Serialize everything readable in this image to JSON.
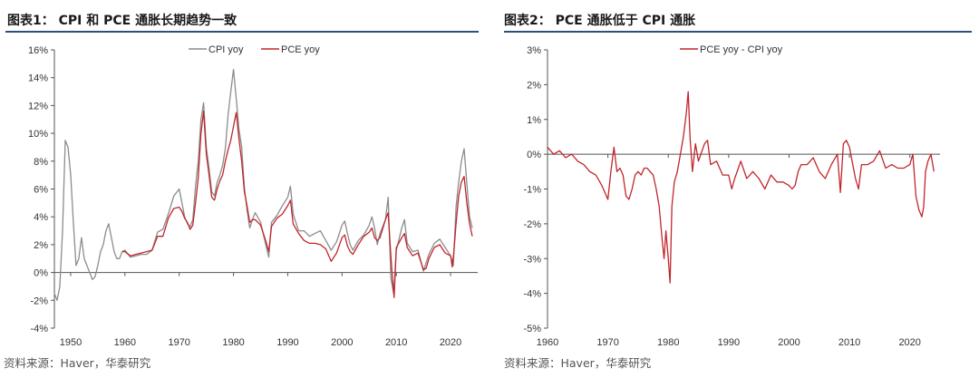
{
  "source_text": "资料来源：Haver，华泰研究",
  "chart_data": [
    {
      "type": "line",
      "title": "图表1： CPI 和 PCE 通胀长期趋势一致",
      "ylim": [
        -4,
        16
      ],
      "yticks": [
        -4,
        -2,
        0,
        2,
        4,
        6,
        8,
        10,
        12,
        14,
        16
      ],
      "ytick_labels": [
        "-4%",
        "-2%",
        "0%",
        "2%",
        "4%",
        "6%",
        "8%",
        "10%",
        "12%",
        "14%",
        "16%"
      ],
      "xlim": [
        1947,
        2025
      ],
      "xticks": [
        1950,
        1960,
        1970,
        1980,
        1990,
        2000,
        2010,
        2020
      ],
      "xtick_labels": [
        "1950",
        "1960",
        "1970",
        "1980",
        "1990",
        "2000",
        "2010",
        "2020"
      ],
      "legend_position": "top-center",
      "series": [
        {
          "name": "CPI  yoy",
          "color": "#8c8c8c",
          "x": [
            1947.0,
            1947.5,
            1948.0,
            1948.5,
            1949.0,
            1949.5,
            1950.0,
            1950.5,
            1951.0,
            1951.5,
            1952.0,
            1952.5,
            1953.0,
            1953.5,
            1954.0,
            1954.5,
            1955.0,
            1955.5,
            1956.0,
            1956.5,
            1957.0,
            1957.5,
            1958.0,
            1958.5,
            1959.0,
            1959.5,
            1960.0,
            1961.0,
            1962.0,
            1963.0,
            1964.0,
            1965.0,
            1966.0,
            1967.0,
            1968.0,
            1969.0,
            1970.0,
            1970.5,
            1971.0,
            1971.5,
            1972.0,
            1972.5,
            1973.0,
            1973.5,
            1974.0,
            1974.5,
            1975.0,
            1975.5,
            1976.0,
            1976.5,
            1977.0,
            1977.5,
            1978.0,
            1978.5,
            1979.0,
            1979.5,
            1980.0,
            1980.5,
            1981.0,
            1981.5,
            1982.0,
            1982.5,
            1983.0,
            1983.5,
            1984.0,
            1985.0,
            1986.0,
            1986.5,
            1987.0,
            1988.0,
            1989.0,
            1990.0,
            1990.5,
            1991.0,
            1992.0,
            1993.0,
            1994.0,
            1995.0,
            1996.0,
            1997.0,
            1998.0,
            1999.0,
            2000.0,
            2000.5,
            2001.0,
            2001.5,
            2002.0,
            2003.0,
            2004.0,
            2005.0,
            2005.5,
            2006.0,
            2006.5,
            2007.0,
            2008.0,
            2008.5,
            2009.0,
            2009.5,
            2010.0,
            2011.0,
            2011.5,
            2012.0,
            2013.0,
            2014.0,
            2015.0,
            2016.0,
            2017.0,
            2018.0,
            2019.0,
            2020.0,
            2020.5,
            2021.0,
            2021.5,
            2022.0,
            2022.5,
            2023.0,
            2023.5,
            2024.0
          ],
          "values": [
            -1.5,
            -2.0,
            -1.0,
            3.0,
            9.5,
            9.0,
            7.0,
            3.5,
            0.5,
            1.0,
            2.5,
            1.0,
            0.5,
            0.0,
            -0.5,
            -0.3,
            0.5,
            1.5,
            2.0,
            3.0,
            3.5,
            2.5,
            1.5,
            1.0,
            1.0,
            1.5,
            1.6,
            1.1,
            1.2,
            1.3,
            1.3,
            1.6,
            2.9,
            3.1,
            4.2,
            5.5,
            6.0,
            5.0,
            4.0,
            3.5,
            3.3,
            3.8,
            6.2,
            8.0,
            11.0,
            12.2,
            9.0,
            7.5,
            5.8,
            5.5,
            6.5,
            7.0,
            7.7,
            8.9,
            11.3,
            13.0,
            14.6,
            12.5,
            10.3,
            9.0,
            6.1,
            4.5,
            3.2,
            3.8,
            4.3,
            3.6,
            1.9,
            1.1,
            3.6,
            4.1,
            4.8,
            5.4,
            6.2,
            4.2,
            3.0,
            3.0,
            2.6,
            2.8,
            3.0,
            2.3,
            1.6,
            2.2,
            3.4,
            3.7,
            2.8,
            2.0,
            1.6,
            2.3,
            2.7,
            3.4,
            4.0,
            3.2,
            2.0,
            2.8,
            3.8,
            5.4,
            -0.4,
            -1.5,
            1.6,
            3.2,
            3.8,
            2.1,
            1.5,
            1.6,
            0.1,
            1.3,
            2.1,
            2.4,
            1.8,
            1.2,
            0.5,
            4.7,
            6.5,
            8.0,
            8.9,
            6.4,
            4.0,
            3.2
          ]
        },
        {
          "name": "PCE yoy",
          "color": "#c0262d",
          "x": [
            1959.5,
            1960.0,
            1961.0,
            1962.0,
            1963.0,
            1964.0,
            1965.0,
            1966.0,
            1967.0,
            1968.0,
            1969.0,
            1970.0,
            1970.5,
            1971.0,
            1971.5,
            1972.0,
            1972.5,
            1973.0,
            1973.5,
            1974.0,
            1974.5,
            1975.0,
            1975.5,
            1976.0,
            1976.5,
            1977.0,
            1977.5,
            1978.0,
            1978.5,
            1979.0,
            1979.5,
            1980.0,
            1980.5,
            1981.0,
            1981.5,
            1982.0,
            1982.5,
            1983.0,
            1983.5,
            1984.0,
            1985.0,
            1986.0,
            1986.5,
            1987.0,
            1988.0,
            1989.0,
            1990.0,
            1990.5,
            1991.0,
            1992.0,
            1993.0,
            1994.0,
            1995.0,
            1996.0,
            1997.0,
            1998.0,
            1999.0,
            2000.0,
            2000.5,
            2001.0,
            2001.5,
            2002.0,
            2003.0,
            2004.0,
            2005.0,
            2005.5,
            2006.0,
            2006.5,
            2007.0,
            2008.0,
            2008.5,
            2009.0,
            2009.3,
            2009.6,
            2010.0,
            2011.0,
            2011.5,
            2012.0,
            2013.0,
            2014.0,
            2015.0,
            2015.5,
            2016.0,
            2017.0,
            2018.0,
            2019.0,
            2020.0,
            2020.3,
            2020.6,
            2021.0,
            2021.5,
            2022.0,
            2022.5,
            2023.0,
            2023.5,
            2024.0
          ],
          "values": [
            1.5,
            1.5,
            1.2,
            1.3,
            1.4,
            1.5,
            1.6,
            2.6,
            2.6,
            3.9,
            4.6,
            4.7,
            4.4,
            3.9,
            3.6,
            3.1,
            3.4,
            5.0,
            6.8,
            10.0,
            11.6,
            8.5,
            7.0,
            5.4,
            5.2,
            6.0,
            6.6,
            7.0,
            8.0,
            8.8,
            9.5,
            10.5,
            11.5,
            9.6,
            8.0,
            5.8,
            4.8,
            3.6,
            3.8,
            3.8,
            3.4,
            2.2,
            1.5,
            3.3,
            3.9,
            4.2,
            4.8,
            5.2,
            3.5,
            2.8,
            2.3,
            2.1,
            2.1,
            2.0,
            1.7,
            0.8,
            1.4,
            2.5,
            2.7,
            1.9,
            1.5,
            1.3,
            2.0,
            2.6,
            2.9,
            3.2,
            2.5,
            2.3,
            2.5,
            3.8,
            4.3,
            1.2,
            -0.5,
            -1.8,
            1.8,
            2.5,
            2.8,
            1.8,
            1.2,
            1.4,
            0.2,
            0.3,
            1.0,
            1.8,
            2.0,
            1.4,
            1.2,
            0.4,
            1.5,
            3.5,
            5.5,
            6.5,
            6.9,
            5.0,
            3.5,
            2.6
          ]
        }
      ]
    },
    {
      "type": "line",
      "title": "图表2： PCE 通胀低于 CPI 通胀",
      "ylim": [
        -5,
        3
      ],
      "yticks": [
        -5,
        -4,
        -3,
        -2,
        -1,
        0,
        1,
        2,
        3
      ],
      "ytick_labels": [
        "-5%",
        "-4%",
        "-3%",
        "-2%",
        "-1%",
        "0%",
        "1%",
        "2%",
        "3%"
      ],
      "xlim": [
        1960,
        2025
      ],
      "xticks": [
        1960,
        1970,
        1980,
        1990,
        2000,
        2010,
        2020
      ],
      "xtick_labels": [
        "1960",
        "1970",
        "1980",
        "1990",
        "2000",
        "2010",
        "2020"
      ],
      "legend_position": "top-center",
      "series": [
        {
          "name": "PCE yoy - CPI yoy",
          "color": "#c0262d",
          "x": [
            1960.0,
            1961.0,
            1962.0,
            1963.0,
            1964.0,
            1965.0,
            1966.0,
            1967.0,
            1968.0,
            1969.0,
            1970.0,
            1970.5,
            1971.0,
            1971.5,
            1972.0,
            1972.5,
            1973.0,
            1973.5,
            1974.0,
            1974.5,
            1975.0,
            1975.5,
            1976.0,
            1976.5,
            1977.0,
            1977.5,
            1978.0,
            1978.5,
            1979.0,
            1979.3,
            1979.6,
            1980.0,
            1980.3,
            1980.6,
            1981.0,
            1981.5,
            1982.0,
            1982.5,
            1983.0,
            1983.3,
            1983.6,
            1984.0,
            1984.5,
            1985.0,
            1986.0,
            1986.5,
            1987.0,
            1988.0,
            1989.0,
            1990.0,
            1990.5,
            1991.0,
            1992.0,
            1993.0,
            1994.0,
            1995.0,
            1996.0,
            1997.0,
            1998.0,
            1999.0,
            2000.0,
            2000.5,
            2001.0,
            2001.5,
            2002.0,
            2003.0,
            2004.0,
            2005.0,
            2006.0,
            2007.0,
            2008.0,
            2008.5,
            2009.0,
            2009.5,
            2010.0,
            2011.0,
            2011.5,
            2012.0,
            2013.0,
            2014.0,
            2015.0,
            2016.0,
            2017.0,
            2018.0,
            2019.0,
            2020.0,
            2020.5,
            2021.0,
            2021.5,
            2022.0,
            2022.3,
            2022.6,
            2023.0,
            2023.5,
            2024.0
          ],
          "values": [
            0.2,
            0.0,
            0.1,
            -0.1,
            0.0,
            -0.2,
            -0.3,
            -0.5,
            -0.6,
            -0.9,
            -1.3,
            -0.5,
            0.2,
            -0.5,
            -0.4,
            -0.6,
            -1.2,
            -1.3,
            -1.0,
            -0.6,
            -0.5,
            -0.6,
            -0.4,
            -0.4,
            -0.5,
            -0.6,
            -1.0,
            -1.5,
            -2.5,
            -3.0,
            -2.2,
            -3.0,
            -3.7,
            -1.5,
            -0.8,
            -0.5,
            0.0,
            0.5,
            1.2,
            1.8,
            0.5,
            -0.5,
            0.3,
            -0.2,
            0.3,
            0.4,
            -0.3,
            -0.2,
            -0.6,
            -0.6,
            -1.0,
            -0.7,
            -0.2,
            -0.7,
            -0.5,
            -0.7,
            -1.0,
            -0.6,
            -0.8,
            -0.8,
            -0.9,
            -1.0,
            -0.9,
            -0.5,
            -0.3,
            -0.3,
            -0.1,
            -0.5,
            -0.7,
            -0.3,
            0.0,
            -1.1,
            0.3,
            0.4,
            0.2,
            -0.7,
            -1.0,
            -0.3,
            -0.3,
            -0.2,
            0.1,
            -0.4,
            -0.3,
            -0.4,
            -0.4,
            -0.3,
            0.0,
            -1.2,
            -1.6,
            -1.8,
            -1.5,
            -0.5,
            -0.2,
            0.0,
            -0.5
          ]
        }
      ]
    }
  ]
}
